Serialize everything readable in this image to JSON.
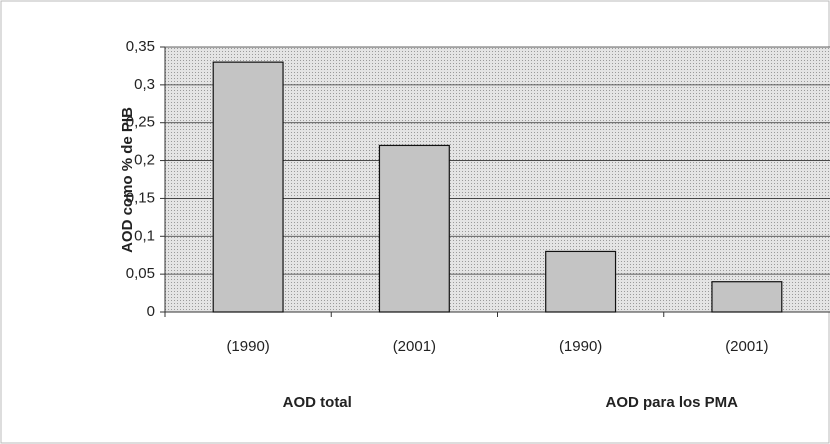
{
  "chart_data": {
    "type": "bar",
    "y_label": "AOD como % de PIB",
    "categories": [
      "(1990)",
      "(2001)",
      "(1990)",
      "(2001)"
    ],
    "groups": [
      "AOD total",
      "AOD para los PMA"
    ],
    "values": [
      0.33,
      0.22,
      0.08,
      0.04
    ],
    "color": "#c4c4c4",
    "ylim": [
      0,
      0.35
    ],
    "yticks": [
      0,
      {
        "value": 0.05,
        "label": "0,05"
      },
      {
        "value": 0.1,
        "label": "0,1"
      },
      {
        "value": 0.15,
        "label": "0,15"
      },
      {
        "value": 0.2,
        "label": "0,2"
      },
      {
        "value": 0.25,
        "label": "0,25"
      },
      {
        "value": 0.3,
        "label": "0,3"
      },
      {
        "value": 0.35,
        "label": "0,35"
      }
    ],
    "grid": true
  }
}
